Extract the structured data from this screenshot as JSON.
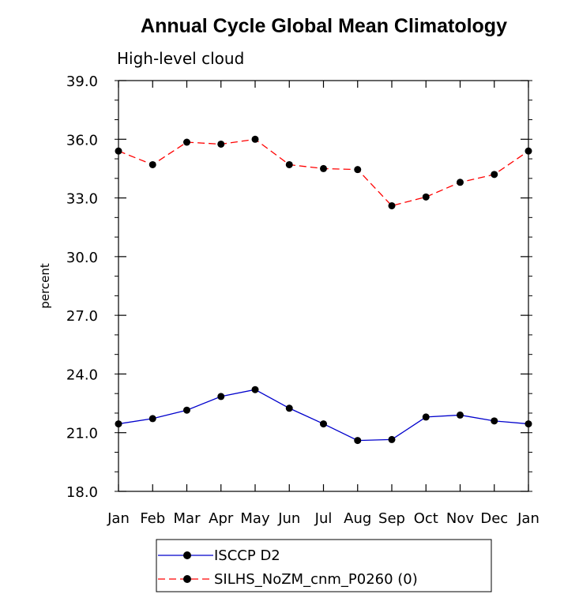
{
  "chart_data": {
    "type": "line",
    "title": "Annual Cycle Global Mean Climatology",
    "subtitle": "High-level cloud",
    "xlabel": "",
    "ylabel": "percent",
    "categories": [
      "Jan",
      "Feb",
      "Mar",
      "Apr",
      "May",
      "Jun",
      "Jul",
      "Aug",
      "Sep",
      "Oct",
      "Nov",
      "Dec",
      "Jan"
    ],
    "yticks": [
      "18.0",
      "21.0",
      "24.0",
      "27.0",
      "30.0",
      "33.0",
      "36.0",
      "39.0"
    ],
    "ylim": [
      18,
      39
    ],
    "grid": false,
    "legend_position": "bottom",
    "series": [
      {
        "name": "ISCCP D2",
        "color": "#0000cc",
        "dash": "solid",
        "marker": "filled-circle",
        "values": [
          21.45,
          21.72,
          22.15,
          22.85,
          23.2,
          22.25,
          21.45,
          20.6,
          20.65,
          21.8,
          21.9,
          21.6,
          21.45
        ]
      },
      {
        "name": "SILHS_NoZM_cnm_P0260 (0)",
        "color": "#ff0000",
        "dash": "dashed",
        "marker": "filled-circle",
        "values": [
          35.4,
          34.7,
          35.85,
          35.75,
          36.0,
          34.7,
          34.5,
          34.45,
          32.6,
          33.05,
          33.8,
          34.2,
          35.4
        ]
      }
    ]
  }
}
